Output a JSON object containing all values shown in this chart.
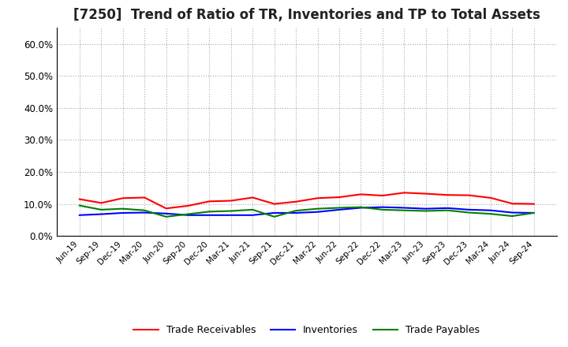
{
  "title": "[7250]  Trend of Ratio of TR, Inventories and TP to Total Assets",
  "title_fontsize": 12,
  "background_color": "#ffffff",
  "grid_color": "#aaaaaa",
  "ylim": [
    0.0,
    0.65
  ],
  "yticks": [
    0.0,
    0.1,
    0.2,
    0.3,
    0.4,
    0.5,
    0.6
  ],
  "x_labels": [
    "Jun-19",
    "Sep-19",
    "Dec-19",
    "Mar-20",
    "Jun-20",
    "Sep-20",
    "Dec-20",
    "Mar-21",
    "Jun-21",
    "Sep-21",
    "Dec-21",
    "Mar-22",
    "Jun-22",
    "Sep-22",
    "Dec-22",
    "Mar-23",
    "Jun-23",
    "Sep-23",
    "Dec-23",
    "Mar-24",
    "Jun-24",
    "Sep-24"
  ],
  "trade_receivables": [
    0.115,
    0.103,
    0.118,
    0.12,
    0.086,
    0.094,
    0.108,
    0.11,
    0.12,
    0.1,
    0.107,
    0.118,
    0.121,
    0.13,
    0.126,
    0.135,
    0.132,
    0.128,
    0.127,
    0.119,
    0.101,
    0.1
  ],
  "inventories": [
    0.065,
    0.068,
    0.072,
    0.073,
    0.07,
    0.065,
    0.065,
    0.065,
    0.065,
    0.072,
    0.072,
    0.075,
    0.082,
    0.088,
    0.09,
    0.088,
    0.085,
    0.087,
    0.082,
    0.08,
    0.073,
    0.072
  ],
  "trade_payables": [
    0.095,
    0.082,
    0.085,
    0.08,
    0.06,
    0.068,
    0.076,
    0.078,
    0.082,
    0.06,
    0.079,
    0.085,
    0.088,
    0.09,
    0.082,
    0.08,
    0.078,
    0.08,
    0.073,
    0.069,
    0.062,
    0.072
  ],
  "line_colors": {
    "trade_receivables": "#ff0000",
    "inventories": "#0000ff",
    "trade_payables": "#008000"
  },
  "legend_labels": {
    "trade_receivables": "Trade Receivables",
    "inventories": "Inventories",
    "trade_payables": "Trade Payables"
  }
}
